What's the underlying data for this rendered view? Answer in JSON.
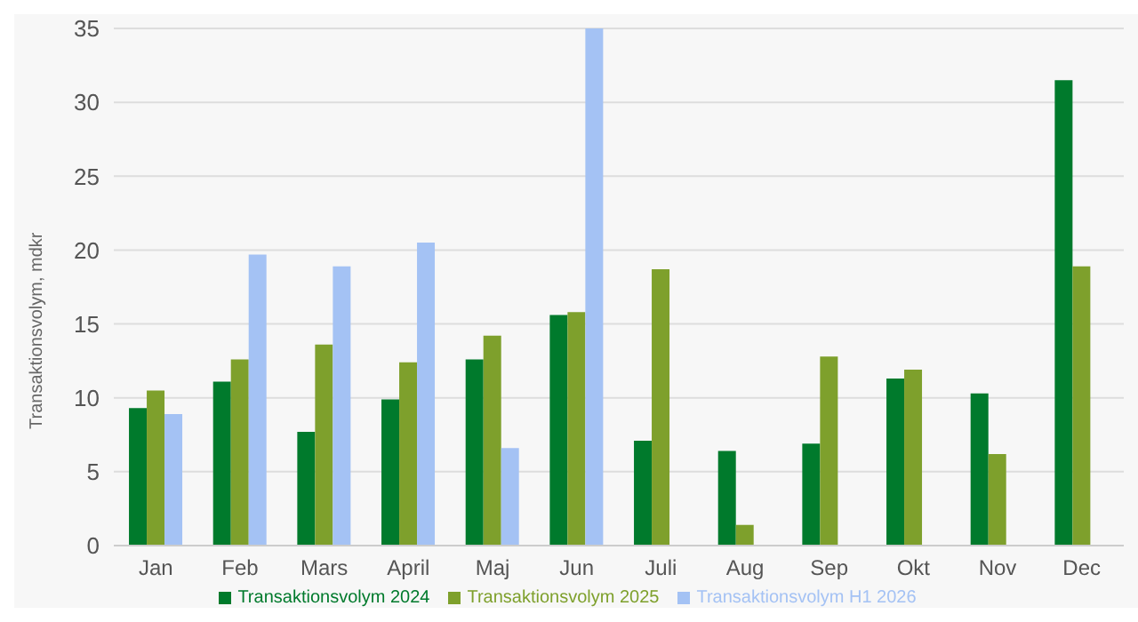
{
  "chart_data": {
    "type": "bar",
    "ylabel": "Transaktionsvolym, mdkr",
    "categories": [
      "Jan",
      "Feb",
      "Mars",
      "April",
      "Maj",
      "Jun",
      "Juli",
      "Aug",
      "Sep",
      "Okt",
      "Nov",
      "Dec"
    ],
    "series": [
      {
        "name": "Transaktionsvolym 2024",
        "color": "#007a2c",
        "values": [
          9.3,
          11.1,
          7.7,
          9.9,
          12.6,
          15.6,
          7.1,
          6.4,
          6.9,
          11.3,
          10.3,
          31.5
        ]
      },
      {
        "name": "Transaktionsvolym 2025",
        "color": "#7ea02c",
        "values": [
          10.5,
          12.6,
          13.6,
          12.4,
          14.2,
          15.8,
          18.7,
          1.4,
          12.8,
          11.9,
          6.2,
          18.9
        ]
      },
      {
        "name": "Transaktionsvolym H1 2026",
        "color": "#a4c2f4",
        "values": [
          8.9,
          19.7,
          18.9,
          20.5,
          6.6,
          35,
          null,
          null,
          null,
          null,
          null,
          null
        ]
      }
    ],
    "ylim": [
      0,
      35
    ],
    "yticks": [
      0,
      5,
      10,
      15,
      20,
      25,
      30,
      35
    ],
    "grid": "y",
    "legend": "bottom"
  }
}
